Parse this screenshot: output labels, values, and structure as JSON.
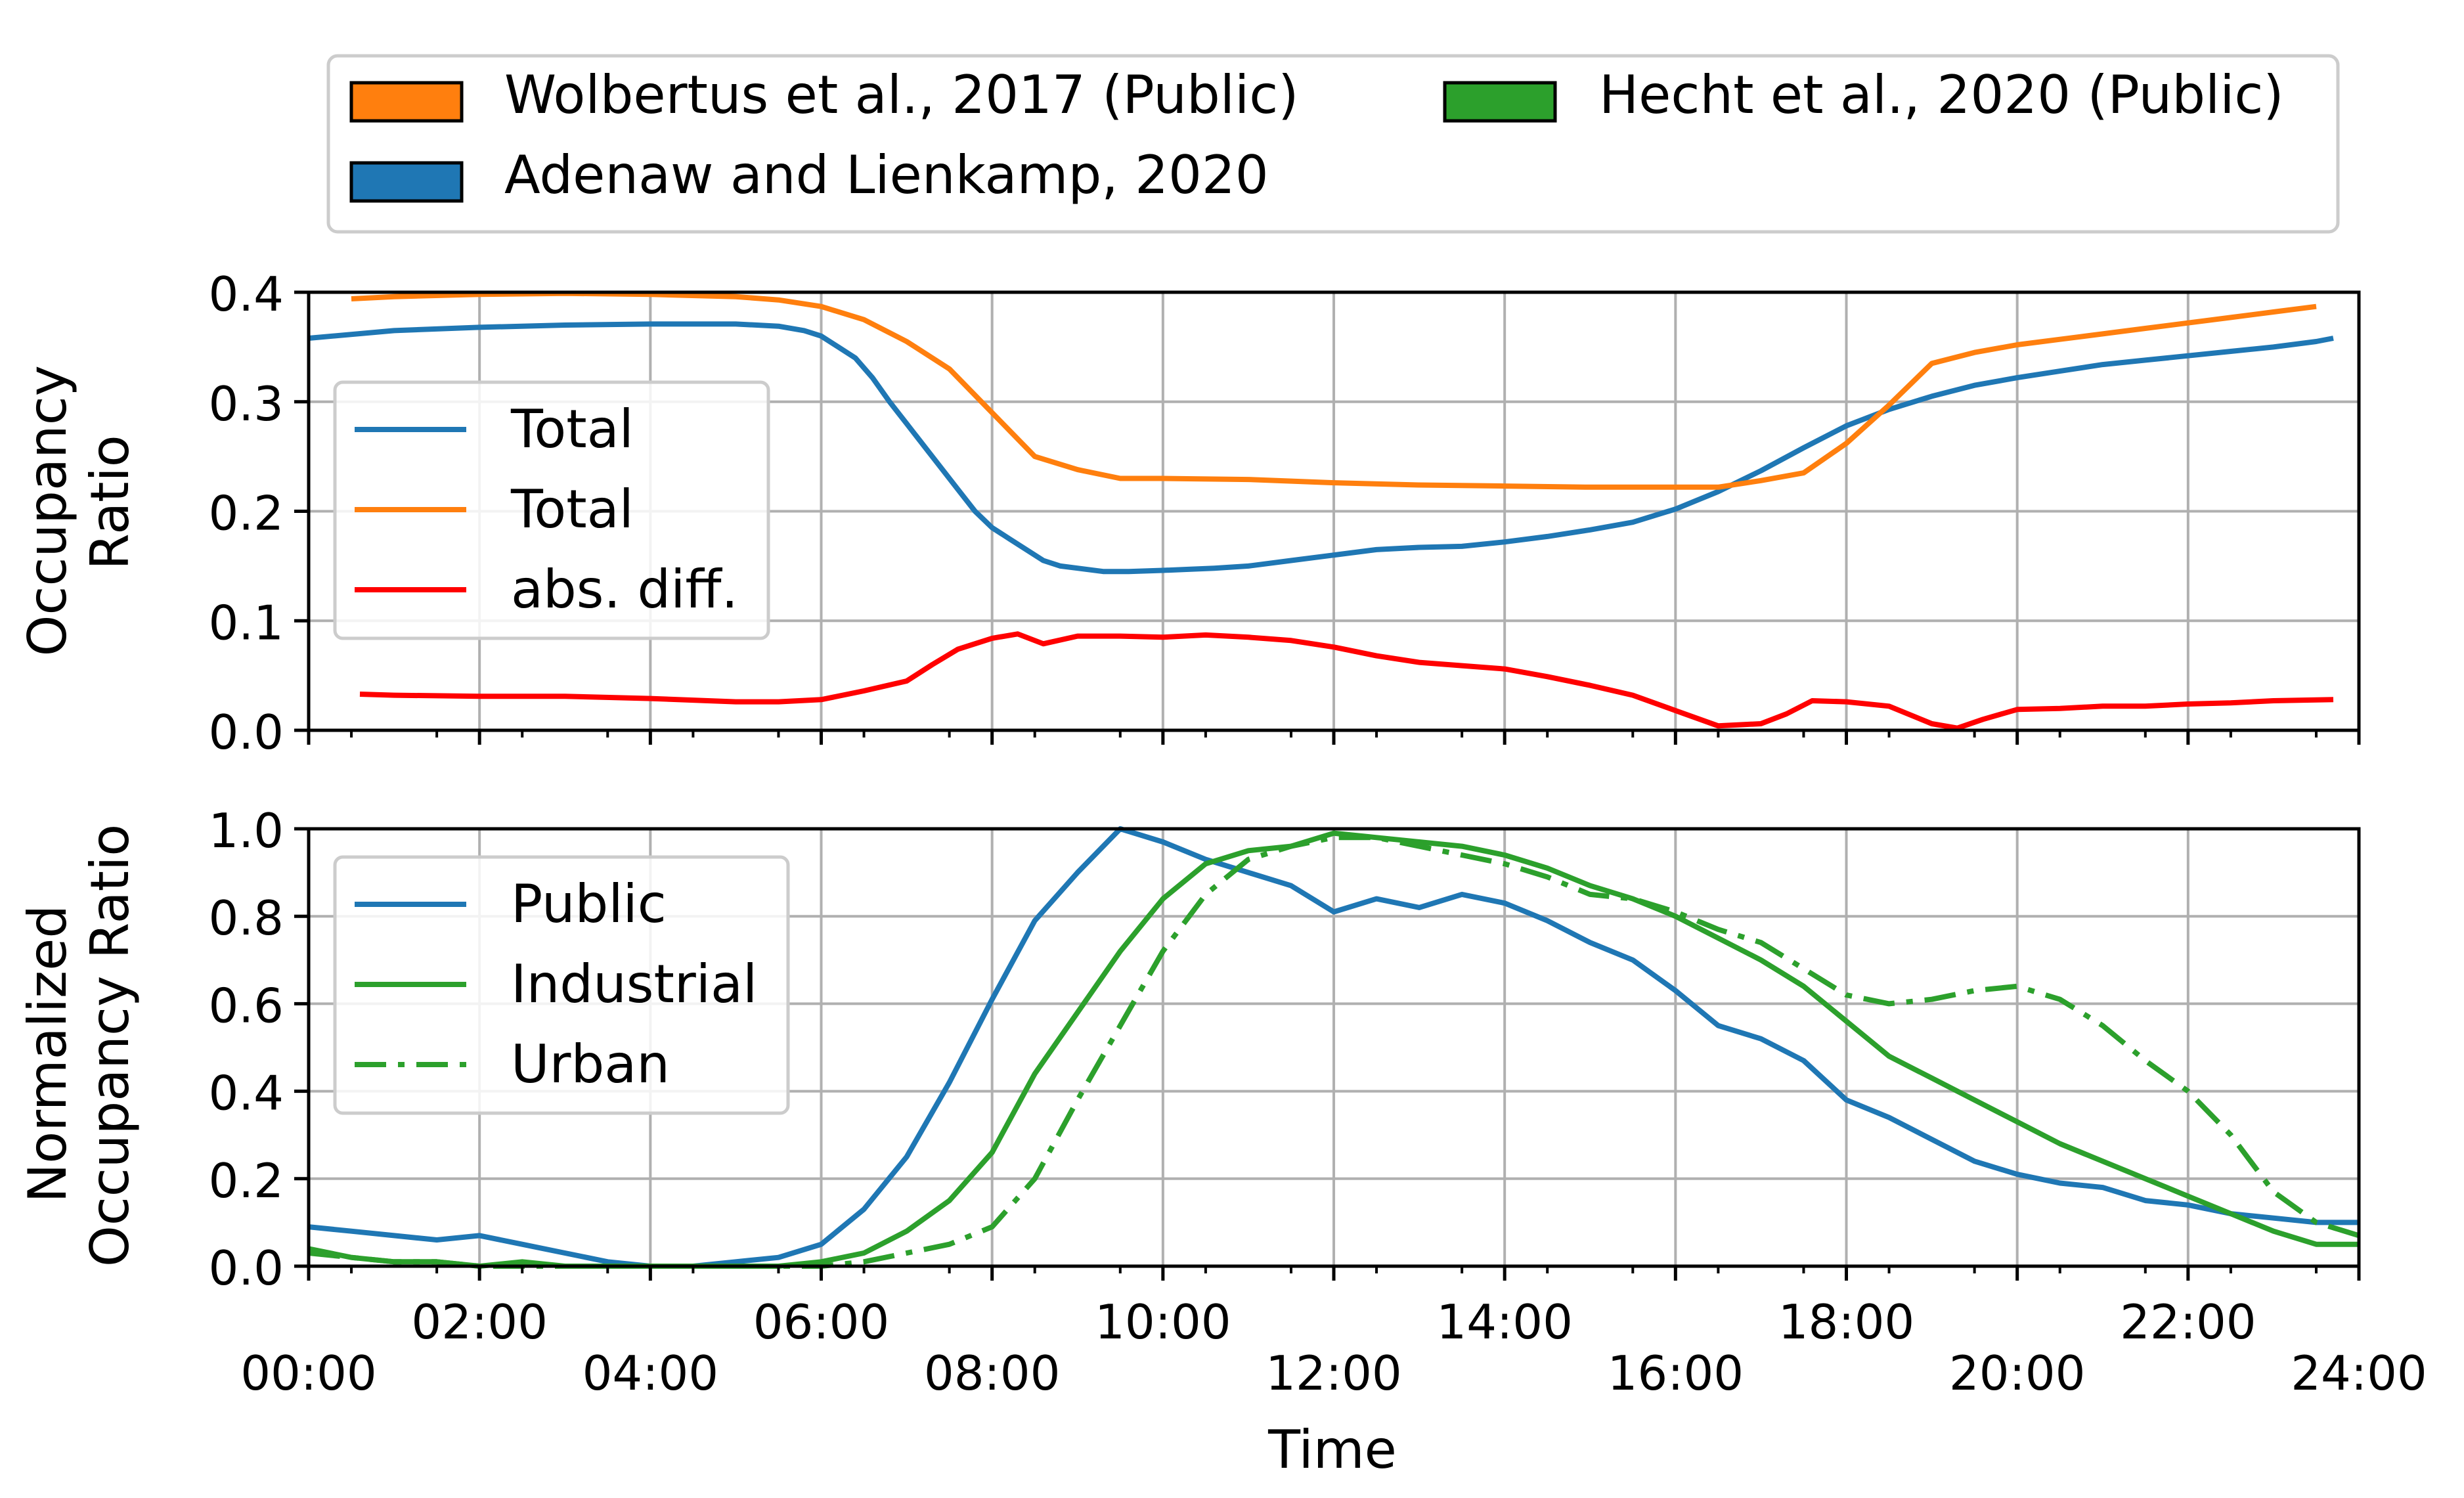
{
  "figure_legend": [
    {
      "label": "Wolbertus et al., 2017 (Public)",
      "color": "#ff7f0e"
    },
    {
      "label": "Adenaw and Lienkamp, 2020",
      "color": "#1f77b4"
    },
    {
      "label": "Hecht et al., 2020 (Public)",
      "color": "#2ca02c"
    }
  ],
  "chart_data": [
    {
      "type": "line",
      "ylabel": "Occupancy\nRatio",
      "xlabel": "",
      "xlim": [
        0,
        24
      ],
      "ylim": [
        0,
        0.4
      ],
      "xticks": [
        0,
        2,
        4,
        6,
        8,
        10,
        12,
        14,
        16,
        18,
        20,
        22,
        24
      ],
      "xtick_labels": [
        "00:00",
        "02:00",
        "04:00",
        "06:00",
        "08:00",
        "10:00",
        "12:00",
        "14:00",
        "16:00",
        "18:00",
        "20:00",
        "22:00",
        "24:00"
      ],
      "yticks": [
        0.0,
        0.1,
        0.2,
        0.3,
        0.4
      ],
      "ytick_labels": [
        "0.0",
        "0.1",
        "0.2",
        "0.3",
        "0.4"
      ],
      "grid": true,
      "legend_position": "center-left",
      "series": [
        {
          "name": "Total",
          "color": "#1f77b4",
          "style": "solid",
          "x": [
            0,
            1,
            2,
            3,
            4,
            4.5,
            5,
            5.5,
            5.8,
            6,
            6.2,
            6.4,
            6.6,
            6.8,
            7,
            7.2,
            7.4,
            7.6,
            7.8,
            8,
            8.2,
            8.4,
            8.6,
            8.8,
            9,
            9.3,
            9.6,
            10,
            10.3,
            10.6,
            11,
            11.5,
            12,
            12.5,
            13,
            13.5,
            14,
            14.5,
            15,
            15.5,
            16,
            16.5,
            17,
            17.5,
            18,
            18.5,
            19,
            19.5,
            20,
            20.5,
            21,
            21.5,
            22,
            22.5,
            23,
            23.5,
            23.7
          ],
          "y": [
            0.358,
            0.365,
            0.368,
            0.37,
            0.371,
            0.371,
            0.371,
            0.369,
            0.365,
            0.36,
            0.35,
            0.34,
            0.322,
            0.3,
            0.28,
            0.26,
            0.24,
            0.22,
            0.2,
            0.185,
            0.175,
            0.165,
            0.155,
            0.15,
            0.148,
            0.145,
            0.145,
            0.146,
            0.147,
            0.148,
            0.15,
            0.155,
            0.16,
            0.165,
            0.167,
            0.168,
            0.172,
            0.177,
            0.183,
            0.19,
            0.202,
            0.218,
            0.237,
            0.258,
            0.278,
            0.293,
            0.305,
            0.315,
            0.322,
            0.328,
            0.334,
            0.338,
            0.342,
            0.346,
            0.35,
            0.355,
            0.358
          ]
        },
        {
          "name": "Total",
          "color": "#ff7f0e",
          "style": "solid",
          "x": [
            0.5,
            1,
            2,
            3,
            4,
            5,
            5.5,
            6,
            6.5,
            7,
            7.5,
            8,
            8.5,
            9,
            9.5,
            10,
            11,
            12,
            13,
            14,
            15,
            16,
            16.5,
            17,
            17.5,
            18,
            18.5,
            19,
            19.5,
            20,
            20.5,
            21,
            21.5,
            22,
            22.5,
            23,
            23.5
          ],
          "y": [
            0.394,
            0.396,
            0.398,
            0.399,
            0.398,
            0.396,
            0.393,
            0.387,
            0.375,
            0.355,
            0.33,
            0.29,
            0.25,
            0.238,
            0.23,
            0.23,
            0.229,
            0.226,
            0.224,
            0.223,
            0.222,
            0.222,
            0.222,
            0.228,
            0.235,
            0.262,
            0.297,
            0.335,
            0.345,
            0.352,
            0.357,
            0.362,
            0.367,
            0.372,
            0.377,
            0.382,
            0.387
          ]
        },
        {
          "name": "abs. diff.",
          "color": "#ff0000",
          "style": "solid",
          "x": [
            0.6,
            1,
            2,
            3,
            4,
            5,
            5.5,
            6,
            6.5,
            7,
            7.3,
            7.6,
            8,
            8.3,
            8.6,
            9,
            9.5,
            10,
            10.5,
            11,
            11.5,
            12,
            12.5,
            13,
            13.5,
            14,
            14.5,
            15,
            15.5,
            16,
            16.5,
            17,
            17.3,
            17.6,
            18,
            18.5,
            19,
            19.3,
            19.6,
            20,
            20.5,
            21,
            21.5,
            22,
            22.5,
            23,
            23.7
          ],
          "y": [
            0.033,
            0.032,
            0.031,
            0.031,
            0.029,
            0.026,
            0.026,
            0.028,
            0.036,
            0.045,
            0.06,
            0.074,
            0.084,
            0.088,
            0.079,
            0.086,
            0.086,
            0.085,
            0.087,
            0.085,
            0.082,
            0.076,
            0.068,
            0.062,
            0.059,
            0.056,
            0.049,
            0.041,
            0.032,
            0.018,
            0.004,
            0.006,
            0.015,
            0.027,
            0.026,
            0.022,
            0.006,
            0.002,
            0.01,
            0.019,
            0.02,
            0.022,
            0.022,
            0.024,
            0.025,
            0.027,
            0.028
          ]
        }
      ]
    },
    {
      "type": "line",
      "ylabel": "Normalized\nOccupancy Ratio",
      "xlabel": "Time",
      "xlim": [
        0,
        24
      ],
      "ylim": [
        0,
        1.0
      ],
      "xticks": [
        0,
        2,
        4,
        6,
        8,
        10,
        12,
        14,
        16,
        18,
        20,
        22,
        24
      ],
      "xtick_labels": [
        "00:00",
        "02:00",
        "04:00",
        "06:00",
        "08:00",
        "10:00",
        "12:00",
        "14:00",
        "16:00",
        "18:00",
        "20:00",
        "22:00",
        "24:00"
      ],
      "yticks": [
        0.0,
        0.2,
        0.4,
        0.6,
        0.8,
        1.0
      ],
      "ytick_labels": [
        "0.0",
        "0.2",
        "0.4",
        "0.6",
        "0.8",
        "1.0"
      ],
      "grid": true,
      "legend_position": "center-left",
      "series": [
        {
          "name": "Public",
          "color": "#1f77b4",
          "style": "solid",
          "x": [
            0,
            0.5,
            1,
            1.5,
            2,
            2.5,
            3,
            3.5,
            4,
            4.5,
            5,
            5.5,
            6,
            6.5,
            7,
            7.5,
            8,
            8.5,
            9,
            9.5,
            10,
            10.5,
            11,
            11.5,
            12,
            12.5,
            13,
            13.5,
            14,
            14.5,
            15,
            15.5,
            16,
            16.5,
            17,
            17.5,
            18,
            18.5,
            19,
            19.5,
            20,
            20.5,
            21,
            21.5,
            22,
            22.5,
            23,
            23.5,
            24
          ],
          "y": [
            0.09,
            0.08,
            0.07,
            0.06,
            0.07,
            0.05,
            0.03,
            0.01,
            0.0,
            0.0,
            0.01,
            0.02,
            0.05,
            0.13,
            0.25,
            0.42,
            0.61,
            0.79,
            0.9,
            1.0,
            0.97,
            0.93,
            0.9,
            0.87,
            0.81,
            0.84,
            0.82,
            0.85,
            0.83,
            0.79,
            0.74,
            0.7,
            0.63,
            0.55,
            0.52,
            0.47,
            0.38,
            0.34,
            0.29,
            0.24,
            0.21,
            0.19,
            0.18,
            0.15,
            0.14,
            0.12,
            0.11,
            0.1,
            0.1
          ]
        },
        {
          "name": "Industrial",
          "color": "#2ca02c",
          "style": "solid",
          "x": [
            0,
            0.5,
            1,
            1.5,
            2,
            2.5,
            3,
            3.5,
            4,
            4.5,
            5,
            5.5,
            6,
            6.5,
            7,
            7.5,
            8,
            8.5,
            9,
            9.5,
            10,
            10.5,
            11,
            11.5,
            12,
            12.5,
            13,
            13.5,
            14,
            14.5,
            15,
            15.5,
            16,
            16.5,
            17,
            17.5,
            18,
            18.5,
            19,
            19.5,
            20,
            20.5,
            21,
            21.5,
            22,
            22.5,
            23,
            23.5,
            24
          ],
          "y": [
            0.04,
            0.02,
            0.01,
            0.01,
            0.0,
            0.01,
            0.0,
            0.0,
            0.0,
            0.0,
            0.0,
            0.0,
            0.01,
            0.03,
            0.08,
            0.15,
            0.26,
            0.44,
            0.58,
            0.72,
            0.84,
            0.92,
            0.95,
            0.96,
            0.99,
            0.98,
            0.97,
            0.96,
            0.94,
            0.91,
            0.87,
            0.84,
            0.8,
            0.75,
            0.7,
            0.64,
            0.56,
            0.48,
            0.43,
            0.38,
            0.33,
            0.28,
            0.24,
            0.2,
            0.16,
            0.12,
            0.08,
            0.05,
            0.05
          ]
        },
        {
          "name": "Urban",
          "color": "#2ca02c",
          "style": "dashdot",
          "x": [
            0,
            0.5,
            1,
            1.5,
            2,
            2.5,
            3,
            3.5,
            4,
            4.5,
            5,
            5.5,
            6,
            6.5,
            7,
            7.5,
            8,
            8.5,
            9,
            9.5,
            10,
            10.5,
            11,
            11.5,
            12,
            12.5,
            13,
            13.5,
            14,
            14.5,
            15,
            15.5,
            16,
            16.5,
            17,
            17.5,
            18,
            18.5,
            19,
            19.5,
            20,
            20.5,
            21,
            21.5,
            22,
            22.5,
            23,
            23.5,
            24
          ],
          "y": [
            0.03,
            0.02,
            0.01,
            0.01,
            0.0,
            0.0,
            0.0,
            0.0,
            0.0,
            0.0,
            0.0,
            0.0,
            0.0,
            0.01,
            0.03,
            0.05,
            0.09,
            0.2,
            0.38,
            0.55,
            0.72,
            0.85,
            0.93,
            0.96,
            0.98,
            0.98,
            0.96,
            0.94,
            0.92,
            0.89,
            0.85,
            0.84,
            0.81,
            0.77,
            0.74,
            0.68,
            0.62,
            0.6,
            0.61,
            0.63,
            0.64,
            0.61,
            0.55,
            0.47,
            0.4,
            0.3,
            0.17,
            0.1,
            0.07
          ]
        }
      ]
    }
  ]
}
